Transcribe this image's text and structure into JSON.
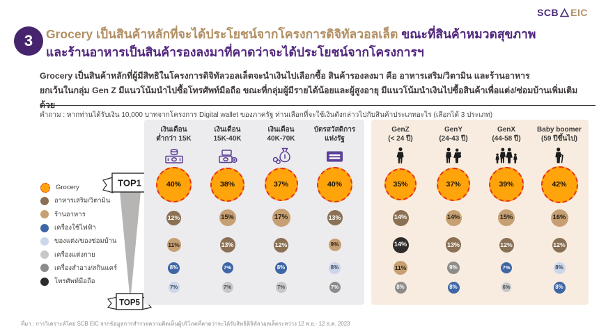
{
  "logo": {
    "scb": "SCB",
    "eic": "EIC"
  },
  "badge": "3",
  "title": {
    "line1_highlight": "Grocery เป็นสินค้าหลักที่จะได้ประโยชน์จากโครงการดิจิทัลวอลเล็ต",
    "line1_rest": " ขณะที่สินค้าหมวดสุขภาพ",
    "line2": "และร้านอาหารเป็นสินค้ารองลงมาที่คาดว่าจะได้ประโยชน์จากโครงการฯ"
  },
  "body": {
    "line1": "Grocery เป็นสินค้าหลักที่ผู้มีสิทธิในโครงการดิจิทัลวอลเล็ตจะนำเงินไปเลือกซื้อ สินค้ารองลงมา คือ อาหารเสริม/วิตามิน และร้านอาหาร",
    "line2": "ยกเว้นในกลุ่ม Gen Z มีแนวโน้มนำไปซื้อโทรศัพท์มือถือ ขณะที่กลุ่มผู้มีรายได้น้อยและผู้สูงอายุ มีแนวโน้มนำเงินไปซื้อสินค้าเพื่อแต่ง/ซ่อมบ้านเพิ่มเติมด้วย"
  },
  "question": "คำถาม : หากท่านได้รับเงิน 10,000 บาทจากโครงการ Digital wallet ของภาครัฐ ท่านเลือกที่จะใช้เงินดังกล่าวไปกับสินค้าประเภทอะไร (เลือกได้ 3 ประเภท)",
  "legend": {
    "items": [
      {
        "label": "Grocery",
        "color": "orange"
      },
      {
        "label": "อาหารเสริม/วิตามิน",
        "color": "brown"
      },
      {
        "label": "ร้านอาหาร",
        "color": "tan"
      },
      {
        "label": "เครื่องใช้ไฟฟ้า",
        "color": "blue"
      },
      {
        "label": "ของแต่ง/ของซ่อมบ้าน",
        "color": "lightblue"
      },
      {
        "label": "เครื่องแต่งกาย",
        "color": "lightgray"
      },
      {
        "label": "เครื่องสำอาง/สกินแคร์",
        "color": "gray"
      },
      {
        "label": "โทรศัพท์มือถือ",
        "color": "black"
      }
    ]
  },
  "funnel": {
    "top_label": "TOP1",
    "bottom_label": "TOP5"
  },
  "colors": {
    "accent_purple": "#50267D",
    "accent_gold": "#B28F63",
    "badge_purple": "#46246E",
    "panel_income_bg": "#ECEBEE",
    "panel_generation_bg": "#F7ECDF",
    "grocery_orange": "#FFA40B",
    "grocery_dash_red": "#E5331A",
    "brown": "#8A7054",
    "tan": "#C6A073",
    "blue": "#3E66A5",
    "lightblue": "#CBD6EB",
    "lightgray": "#C7C7C9",
    "gray": "#8E8C8A",
    "black": "#2E2C2A"
  },
  "chart_data": {
    "type": "table",
    "unit": "%",
    "note": "Top-5 product categories chosen for 10,000 THB digital wallet spending; bubble size = share of respondents",
    "categories": [
      "Grocery",
      "อาหารเสริม/วิตามิน",
      "ร้านอาหาร",
      "เครื่องใช้ไฟฟ้า",
      "ของแต่ง/ของซ่อมบ้าน",
      "เครื่องแต่งกาย",
      "เครื่องสำอาง/สกินแคร์",
      "โทรศัพท์มือถือ"
    ],
    "panels": [
      {
        "name": "income",
        "columns": [
          {
            "title_line1": "เงินเดือน",
            "title_line2": "ต่ำกว่า 15K",
            "icon": "banknote-coins-icon",
            "rows": [
              {
                "category": "Grocery",
                "value": 40,
                "label": "40%",
                "color": "orange"
              },
              {
                "category": "อาหารเสริม/วิตามิน",
                "value": 12,
                "label": "12%",
                "color": "brown"
              },
              {
                "category": "ร้านอาหาร",
                "value": 11,
                "label": "11%",
                "color": "tan"
              },
              {
                "category": "เครื่องใช้ไฟฟ้า",
                "value": 8,
                "label": "8%",
                "color": "blue"
              },
              {
                "category": "ของแต่ง/ของซ่อมบ้าน",
                "value": 7,
                "label": "7%",
                "color": "lightblue"
              }
            ]
          },
          {
            "title_line1": "เงินเดือน",
            "title_line2": "15K-40K",
            "icon": "banknote-coin-icon",
            "rows": [
              {
                "category": "Grocery",
                "value": 38,
                "label": "38%",
                "color": "orange"
              },
              {
                "category": "ร้านอาหาร",
                "value": 15,
                "label": "15%",
                "color": "tan"
              },
              {
                "category": "อาหารเสริม/วิตามิน",
                "value": 13,
                "label": "13%",
                "color": "brown"
              },
              {
                "category": "เครื่องใช้ไฟฟ้า",
                "value": 7,
                "label": "7%",
                "color": "blue"
              },
              {
                "category": "เครื่องแต่งกาย",
                "value": 7,
                "label": "7%",
                "color": "lightgray"
              }
            ]
          },
          {
            "title_line1": "เงินเดือน",
            "title_line2": "40K-70K",
            "icon": "money-bag-icon",
            "rows": [
              {
                "category": "Grocery",
                "value": 37,
                "label": "37%",
                "color": "orange"
              },
              {
                "category": "ร้านอาหาร",
                "value": 17,
                "label": "17%",
                "color": "tan"
              },
              {
                "category": "อาหารเสริม/วิตามิน",
                "value": 12,
                "label": "12%",
                "color": "brown"
              },
              {
                "category": "เครื่องใช้ไฟฟ้า",
                "value": 8,
                "label": "8%",
                "color": "blue"
              },
              {
                "category": "เครื่องแต่งกาย",
                "value": 7,
                "label": "7%",
                "color": "lightgray"
              }
            ]
          },
          {
            "title_line1": "บัตรสวัสดิการ",
            "title_line2": "แห่งรัฐ",
            "icon": "welfare-card-icon",
            "rows": [
              {
                "category": "Grocery",
                "value": 40,
                "label": "40%",
                "color": "orange"
              },
              {
                "category": "อาหารเสริม/วิตามิน",
                "value": 13,
                "label": "13%",
                "color": "brown"
              },
              {
                "category": "ร้านอาหาร",
                "value": 9,
                "label": "9%",
                "color": "tan"
              },
              {
                "category": "ของแต่ง/ของซ่อมบ้าน",
                "value": 8,
                "label": "8%",
                "color": "lightblue"
              },
              {
                "category": "เครื่องสำอาง/สกินแคร์",
                "value": 7,
                "label": "7%",
                "color": "gray"
              }
            ]
          }
        ]
      },
      {
        "name": "generation",
        "columns": [
          {
            "title_line1": "GenZ",
            "title_line2": "(< 24 ปี)",
            "icon": "person-icon",
            "rows": [
              {
                "category": "Grocery",
                "value": 35,
                "label": "35%",
                "color": "orange"
              },
              {
                "category": "อาหารเสริม/วิตามิน",
                "value": 14,
                "label": "14%",
                "color": "brown"
              },
              {
                "category": "โทรศัพท์มือถือ",
                "value": 14,
                "label": "14%",
                "color": "black"
              },
              {
                "category": "ร้านอาหาร",
                "value": 11,
                "label": "11%",
                "color": "tan"
              },
              {
                "category": "เครื่องสำอาง/สกินแคร์",
                "value": 8,
                "label": "8%",
                "color": "gray"
              }
            ]
          },
          {
            "title_line1": "GenY",
            "title_line2": "(24-43 ปี)",
            "icon": "couple-icon",
            "rows": [
              {
                "category": "Grocery",
                "value": 37,
                "label": "37%",
                "color": "orange"
              },
              {
                "category": "ร้านอาหาร",
                "value": 14,
                "label": "14%",
                "color": "tan"
              },
              {
                "category": "อาหารเสริม/วิตามิน",
                "value": 13,
                "label": "13%",
                "color": "brown"
              },
              {
                "category": "เครื่องสำอาง/สกินแคร์",
                "value": 9,
                "label": "9%",
                "color": "gray"
              },
              {
                "category": "เครื่องใช้ไฟฟ้า",
                "value": 8,
                "label": "8%",
                "color": "blue"
              }
            ]
          },
          {
            "title_line1": "GenX",
            "title_line2": "(44-58 ปี)",
            "icon": "family-icon",
            "rows": [
              {
                "category": "Grocery",
                "value": 39,
                "label": "39%",
                "color": "orange"
              },
              {
                "category": "ร้านอาหาร",
                "value": 15,
                "label": "15%",
                "color": "tan"
              },
              {
                "category": "อาหารเสริม/วิตามิน",
                "value": 12,
                "label": "12%",
                "color": "brown"
              },
              {
                "category": "เครื่องใช้ไฟฟ้า",
                "value": 7,
                "label": "7%",
                "color": "blue"
              },
              {
                "category": "เครื่องแต่งกาย",
                "value": 6,
                "label": "6%",
                "color": "lightgray"
              }
            ]
          },
          {
            "title_line1": "Baby boomer",
            "title_line2": "(59 ปีขึ้นไป)",
            "icon": "elderly-icon",
            "rows": [
              {
                "category": "Grocery",
                "value": 42,
                "label": "42%",
                "color": "orange"
              },
              {
                "category": "ร้านอาหาร",
                "value": 16,
                "label": "16%",
                "color": "tan"
              },
              {
                "category": "อาหารเสริม/วิตามิน",
                "value": 12,
                "label": "12%",
                "color": "brown"
              },
              {
                "category": "ของแต่ง/ของซ่อมบ้าน",
                "value": 8,
                "label": "8%",
                "color": "lightblue"
              },
              {
                "category": "เครื่องใช้ไฟฟ้า",
                "value": 8,
                "label": "8%",
                "color": "blue"
              }
            ]
          }
        ]
      }
    ]
  },
  "footnote": "ที่มา : การวิเคราะห์โดย SCB EIC จากข้อมูลการสำรวจความคิดเห็นผู้บริโภคที่คาดว่าจะได้รับสิทธิดิจิทัลวอลเล็ตระหว่าง 12 พ.ย.- 12 ธ.ค. 2023"
}
